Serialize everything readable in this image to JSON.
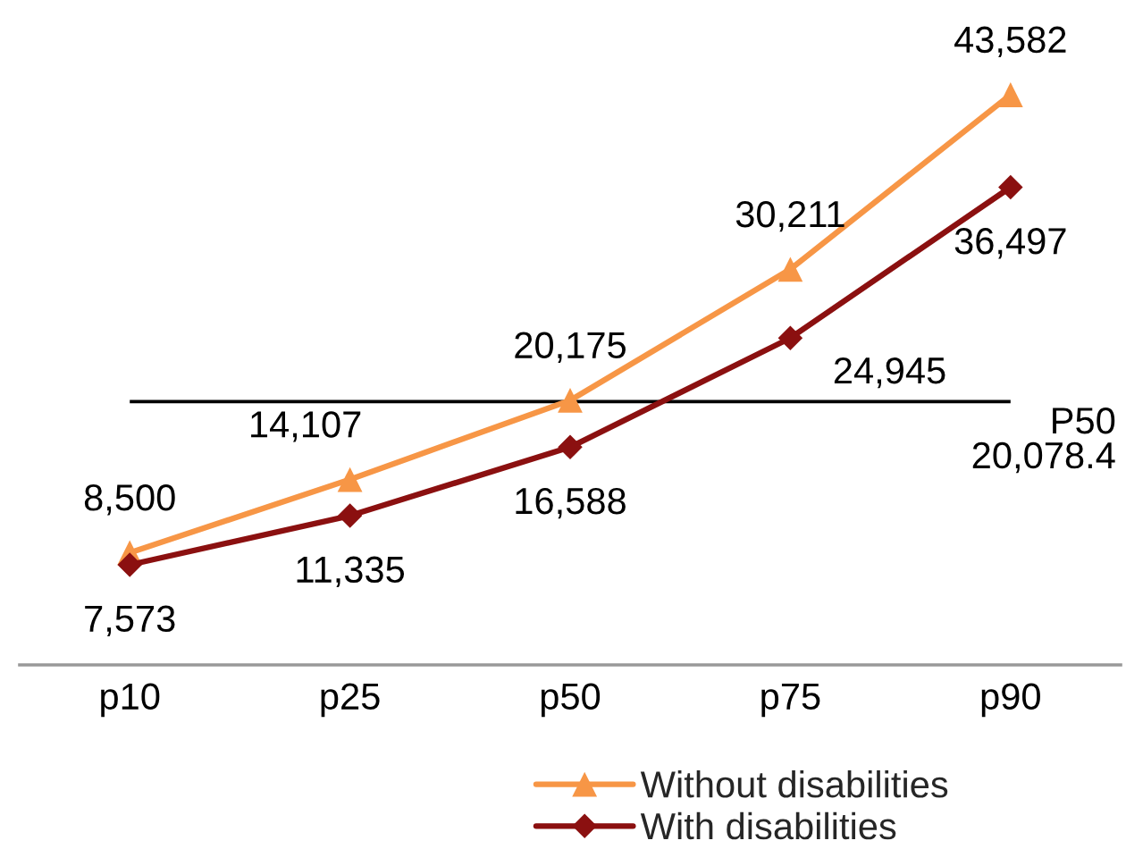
{
  "chart_data": {
    "type": "line",
    "categories": [
      "p10",
      "p25",
      "p50",
      "p75",
      "p90"
    ],
    "series": [
      {
        "name": "Without disabilities",
        "color": "#f79646",
        "marker": "triangle",
        "values": [
          8500,
          14107,
          20175,
          30211,
          43582
        ],
        "value_labels": [
          "8,500",
          "14,107",
          "20,175",
          "30,211",
          "43,582"
        ]
      },
      {
        "name": "With disabilities",
        "color": "#8b1010",
        "marker": "diamond",
        "values": [
          7573,
          11335,
          16588,
          24945,
          36497
        ],
        "value_labels": [
          "7,573",
          "11,335",
          "16,588",
          "24,945",
          "36,497"
        ]
      }
    ],
    "tick_labels": "x",
    "ref_lines": [
      {
        "axis": "y",
        "value": 20078.4,
        "label": "P50\n20,078.4",
        "color": "#000000"
      }
    ],
    "legend": "bottom"
  }
}
